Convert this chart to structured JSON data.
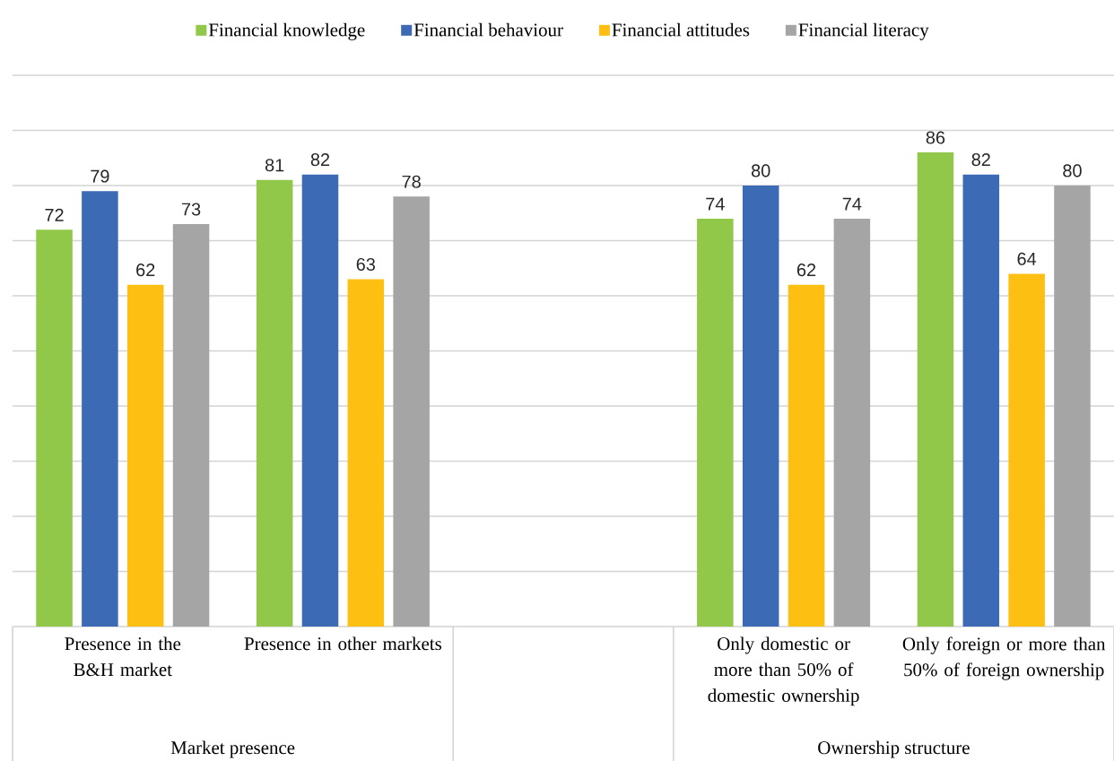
{
  "chart_data": {
    "type": "bar",
    "categories": [
      "Presence in the B&H market",
      "Presence in other markets",
      null,
      "Only domestic or more than 50% of domestic ownership",
      "Only foreign or more than 50% of foreign ownership"
    ],
    "series": [
      {
        "name": "Financial knowledge",
        "color": "#92c84a",
        "values": [
          72,
          81,
          null,
          74,
          86
        ]
      },
      {
        "name": "Financial behaviour",
        "color": "#3d6ab4",
        "values": [
          79,
          82,
          null,
          80,
          82
        ]
      },
      {
        "name": "Financial attitudes",
        "color": "#fdbf12",
        "values": [
          62,
          63,
          null,
          62,
          64
        ]
      },
      {
        "name": "Financial literacy",
        "color": "#a5a5a5",
        "values": [
          73,
          78,
          null,
          74,
          80
        ]
      }
    ],
    "ylim": [
      0,
      100
    ],
    "yticks": [
      {
        "value": 0,
        "label": null
      },
      {
        "value": 10,
        "label": null
      },
      {
        "value": 20,
        "label": null
      },
      {
        "value": 30,
        "label": null
      },
      {
        "value": 40,
        "label": null
      },
      {
        "value": 50,
        "label": null
      },
      {
        "value": 60,
        "label": null
      },
      {
        "value": 70,
        "label": null
      },
      {
        "value": 80,
        "label": null
      },
      {
        "value": 90,
        "label": null
      },
      {
        "value": 100,
        "label": null
      }
    ],
    "grid": "y",
    "legend": "top",
    "tick_labels": "x",
    "data_labels": true,
    "annotations": [
      "Market presence",
      "Ownership structure"
    ]
  }
}
